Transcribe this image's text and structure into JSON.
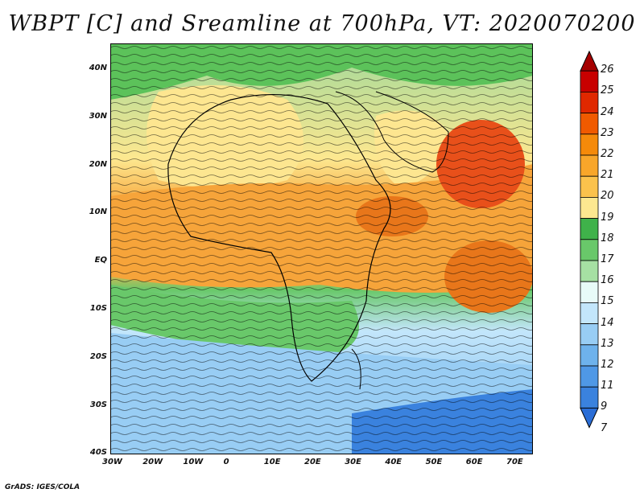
{
  "title": "WBPT [C] and Sreamline at 700hPa, VT: 2020070200",
  "footer": "GrADS: IGES/COLA",
  "lat_ticks": [
    "40N",
    "30N",
    "20N",
    "10N",
    "EQ",
    "10S",
    "20S",
    "30S",
    "40S"
  ],
  "lon_ticks": [
    "30W",
    "20W",
    "10W",
    "0",
    "10E",
    "20E",
    "30E",
    "40E",
    "50E",
    "60E",
    "70E"
  ],
  "colorbar": {
    "labels": [
      "26",
      "25",
      "24",
      "23",
      "22",
      "21",
      "20",
      "19",
      "18",
      "17",
      "16",
      "15",
      "14",
      "13",
      "12",
      "11",
      "9",
      "7"
    ],
    "colors": [
      "#a50000",
      "#c80000",
      "#e02800",
      "#f05a00",
      "#f58a0a",
      "#f8a62a",
      "#fbc24c",
      "#fde890",
      "#3fb24a",
      "#69c86a",
      "#a6e0a3",
      "#e8fbf8",
      "#c3e6fb",
      "#98cdf4",
      "#6eb2ec",
      "#4f98e6",
      "#3a82de",
      "#2a6dd6"
    ]
  },
  "regions": [
    {
      "name": "n-africa-green",
      "color": "#5cc25a"
    },
    {
      "name": "sahara-yellow",
      "color": "#fde690"
    },
    {
      "name": "equatorial-orange",
      "color": "#f6a43a"
    },
    {
      "name": "arabia-red",
      "color": "#e8501a"
    },
    {
      "name": "south-blue",
      "color": "#98cdf4"
    }
  ]
}
